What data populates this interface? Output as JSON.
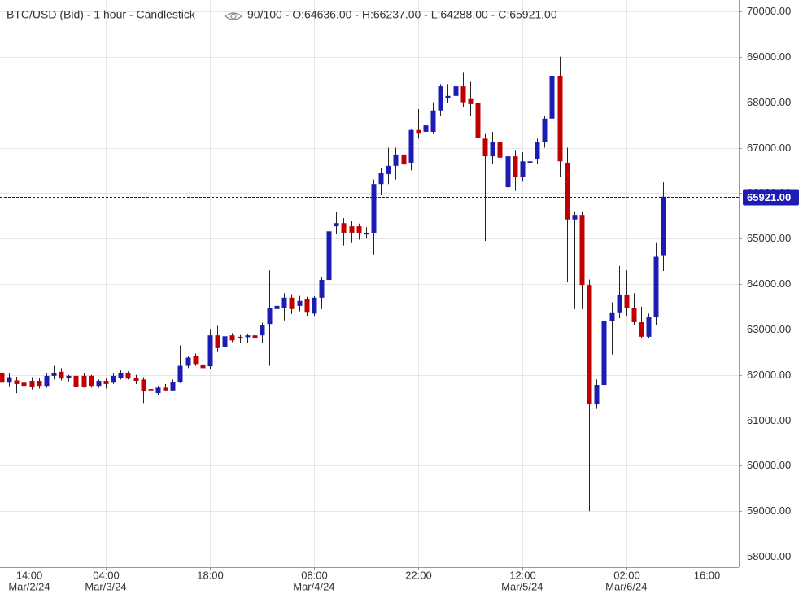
{
  "chart_data": {
    "type": "candlestick",
    "title": "BTC/USD (Bid) - 1 hour - Candlestick",
    "status": "90/100 - O:64636.00 - H:66237.00 - L:64288.00 - C:65921.00",
    "up_color": "#1c1cb4",
    "down_color": "#c00000",
    "grid": true,
    "xlim": [
      -0.22,
      99.12
    ],
    "ylim": [
      57770,
      70250
    ],
    "yticks": [
      {
        "value": 58000,
        "label": "58000.00"
      },
      {
        "value": 59000,
        "label": "59000.00"
      },
      {
        "value": 60000,
        "label": "60000.00"
      },
      {
        "value": 61000,
        "label": "61000.00"
      },
      {
        "value": 62000,
        "label": "62000.00"
      },
      {
        "value": 63000,
        "label": "63000.00"
      },
      {
        "value": 64000,
        "label": "64000.00"
      },
      {
        "value": 65000,
        "label": "65000.00"
      },
      {
        "value": 66000,
        "label": "66000.00"
      },
      {
        "value": 67000,
        "label": "67000.00"
      },
      {
        "value": 68000,
        "label": "68000.00"
      },
      {
        "value": 69000,
        "label": "69000.00"
      },
      {
        "value": 70000,
        "label": "70000.00"
      }
    ],
    "xticks": [
      {
        "value": 0,
        "label": "14:00"
      },
      {
        "value": 14,
        "label": "04:00"
      },
      {
        "value": 28,
        "label": "18:00"
      },
      {
        "value": 42,
        "label": "08:00"
      },
      {
        "value": 56,
        "label": "22:00"
      },
      {
        "value": 70,
        "label": "12:00"
      },
      {
        "value": 84,
        "label": "02:00"
      },
      {
        "value": 98,
        "label": "16:00"
      }
    ],
    "date_labels": [
      {
        "value": 0,
        "label": "Mar/2/24"
      },
      {
        "value": 14,
        "label": "Mar/3/24"
      },
      {
        "value": 42,
        "label": "Mar/4/24"
      },
      {
        "value": 70,
        "label": "Mar/5/24"
      },
      {
        "value": 84,
        "label": "Mar/6/24"
      }
    ],
    "last_price": {
      "value": 65921,
      "label": "65921.00"
    },
    "x": [
      0,
      1,
      2,
      3,
      4,
      5,
      6,
      7,
      8,
      9,
      10,
      11,
      12,
      13,
      14,
      15,
      16,
      17,
      18,
      19,
      20,
      21,
      22,
      23,
      24,
      25,
      26,
      27,
      28,
      29,
      30,
      31,
      32,
      33,
      34,
      35,
      36,
      37,
      38,
      39,
      40,
      41,
      42,
      43,
      44,
      45,
      46,
      47,
      48,
      49,
      50,
      51,
      52,
      53,
      54,
      55,
      56,
      57,
      58,
      59,
      60,
      61,
      62,
      63,
      64,
      65,
      66,
      67,
      68,
      69,
      70,
      71,
      72,
      73,
      74,
      75,
      76,
      77,
      78,
      79,
      80,
      81,
      82,
      83,
      84,
      85,
      86,
      87,
      88,
      89
    ],
    "open": [
      62050,
      61830,
      61880,
      61830,
      61870,
      61870,
      61760,
      61980,
      62070,
      61940,
      61980,
      61980,
      61980,
      61760,
      61870,
      61830,
      61940,
      62050,
      61940,
      61900,
      61690,
      61600,
      61720,
      61660,
      61840,
      62200,
      62420,
      62230,
      62190,
      62870,
      62620,
      62870,
      62840,
      62830,
      62870,
      62870,
      63120,
      63450,
      63480,
      63700,
      63520,
      63660,
      63350,
      63700,
      64090,
      65270,
      65340,
      65270,
      65270,
      65090,
      65130,
      66200,
      66420,
      66600,
      66850,
      66670,
      67390,
      67350,
      67350,
      67820,
      68100,
      68140,
      68350,
      68070,
      67990,
      67200,
      66810,
      67120,
      66130,
      66810,
      66350,
      66670,
      66740,
      67130,
      67640,
      68570,
      66670,
      65420,
      65520,
      63980,
      61350,
      61780,
      63190,
      63360,
      63770,
      63480,
      63160,
      62840,
      63270,
      64636
    ],
    "high": [
      62200,
      62050,
      61960,
      61900,
      61950,
      61930,
      62050,
      62200,
      62150,
      62000,
      62020,
      62040,
      62000,
      61900,
      61920,
      62030,
      62100,
      62080,
      62000,
      61950,
      61800,
      61760,
      61800,
      61900,
      62650,
      62420,
      62470,
      62300,
      63010,
      63080,
      62950,
      62920,
      62880,
      62900,
      62950,
      63150,
      64300,
      63600,
      63800,
      63780,
      63740,
      63720,
      63730,
      64150,
      65600,
      65580,
      65450,
      65380,
      65330,
      65250,
      66300,
      66550,
      67000,
      67000,
      67550,
      67400,
      67850,
      67700,
      68000,
      68400,
      68400,
      68650,
      68650,
      68450,
      68450,
      67300,
      67350,
      67200,
      67100,
      66950,
      66900,
      66850,
      67200,
      67700,
      68900,
      69000,
      67000,
      65600,
      65600,
      64100,
      61900,
      63200,
      63600,
      64400,
      64300,
      63800,
      63500,
      63350,
      64900,
      66237
    ],
    "low": [
      61800,
      61750,
      61600,
      61700,
      61680,
      61700,
      61720,
      61900,
      61880,
      61860,
      61700,
      61720,
      61720,
      61720,
      61700,
      61800,
      61900,
      61900,
      61800,
      61380,
      61450,
      61550,
      61650,
      61640,
      61820,
      62150,
      62200,
      62120,
      62130,
      62520,
      62580,
      62720,
      62700,
      62700,
      62660,
      62700,
      62200,
      63120,
      63200,
      63340,
      63400,
      63300,
      63300,
      63450,
      63980,
      65100,
      64850,
      64900,
      64980,
      65000,
      64650,
      65950,
      66200,
      66300,
      66400,
      66500,
      67200,
      67150,
      67300,
      67700,
      67980,
      67950,
      67900,
      67700,
      66850,
      64950,
      66650,
      66500,
      65520,
      66050,
      66250,
      66600,
      66650,
      67000,
      67500,
      66350,
      64050,
      63450,
      63450,
      59000,
      61250,
      61650,
      62450,
      63250,
      63300,
      63100,
      62800,
      62800,
      63100,
      64288
    ],
    "close": [
      61830,
      61950,
      61800,
      61760,
      61740,
      61760,
      61980,
      62050,
      61920,
      61980,
      61740,
      61740,
      61760,
      61870,
      61800,
      61980,
      62050,
      61920,
      61870,
      61640,
      61660,
      61720,
      61660,
      61840,
      62200,
      62380,
      62240,
      62150,
      62870,
      62590,
      62850,
      62760,
      62800,
      62870,
      62800,
      63090,
      63480,
      63520,
      63700,
      63450,
      63630,
      63370,
      63700,
      64090,
      65160,
      65340,
      65130,
      65130,
      65130,
      65130,
      66200,
      66450,
      66600,
      66850,
      66630,
      67390,
      67310,
      67490,
      67820,
      68350,
      68140,
      68350,
      68000,
      67960,
      67210,
      66810,
      67120,
      66780,
      66810,
      66350,
      66700,
      66700,
      67130,
      67640,
      68570,
      66700,
      65420,
      65520,
      63980,
      61350,
      61780,
      63190,
      63360,
      63770,
      63480,
      63160,
      62840,
      63270,
      64600,
      65921
    ]
  }
}
